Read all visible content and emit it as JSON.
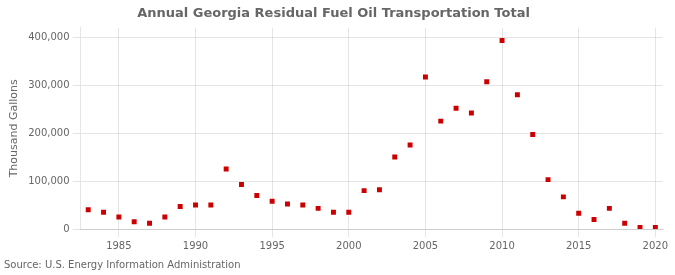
{
  "chart_data": {
    "type": "scatter",
    "title": "Annual Georgia Residual Fuel Oil Transportation Total",
    "ylabel": "Thousand Gallons",
    "annotations": [
      "Source: U.S. Energy Information Administration"
    ],
    "x": [
      1983,
      1984,
      1985,
      1986,
      1987,
      1988,
      1989,
      1990,
      1991,
      1992,
      1993,
      1994,
      1995,
      1996,
      1997,
      1998,
      1999,
      2000,
      2001,
      2002,
      2003,
      2004,
      2005,
      2006,
      2007,
      2008,
      2009,
      2010,
      2011,
      2012,
      2013,
      2014,
      2015,
      2016,
      2017,
      2018,
      2019,
      2020
    ],
    "values": [
      40000,
      35000,
      25000,
      15000,
      12000,
      25000,
      47000,
      50000,
      50000,
      125000,
      93000,
      70000,
      58000,
      52000,
      50000,
      43000,
      35000,
      35000,
      80000,
      82000,
      150000,
      175000,
      317000,
      225000,
      252000,
      242000,
      307000,
      393000,
      280000,
      197000,
      103000,
      67000,
      33000,
      20000,
      43000,
      12000,
      3000,
      3000
    ],
    "color": "#cc0000",
    "marker": "square",
    "xlim": [
      1982.5,
      2020.5
    ],
    "xticks": [
      1985,
      1990,
      1995,
      2000,
      2005,
      2010,
      2015,
      2020
    ],
    "ylim": [
      0,
      420000
    ],
    "yticks": [
      0,
      {
        "value": 100000,
        "label": "100,000"
      },
      {
        "value": 200000,
        "label": "200,000"
      },
      {
        "value": 300000,
        "label": "300,000"
      },
      {
        "value": 400000,
        "label": "400,000"
      }
    ],
    "grid": true
  }
}
